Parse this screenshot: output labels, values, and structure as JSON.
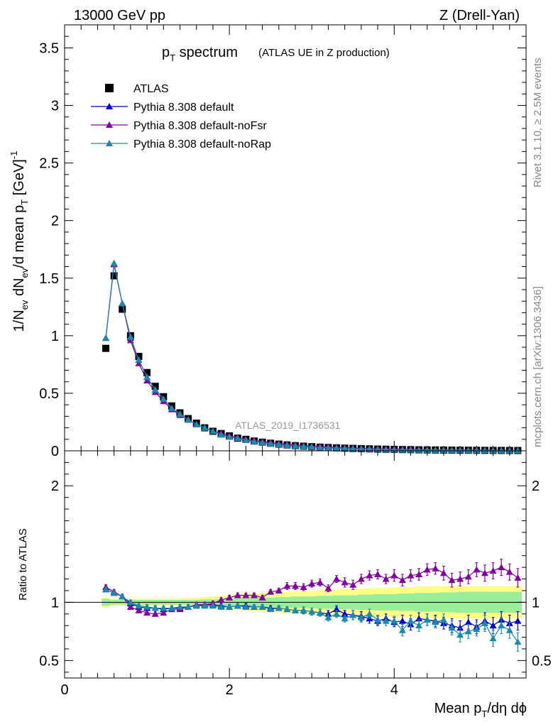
{
  "header": {
    "left": "13000 GeV pp",
    "right": "Z (Drell-Yan)"
  },
  "side_labels": {
    "rivet": "Rivet 3.1.10, ≥ 2.5M events",
    "mcplots": "mcplots.cern.ch [arXiv:1306.3436]"
  },
  "plot_title": {
    "main": "p",
    "main_sub": "T",
    "main_rest": " spectrum",
    "small": "(ATLAS UE in Z production)"
  },
  "analysis_label": "ATLAS_2019_I1736531",
  "ylabel_top": "1/N_ev dN_ev/d mean p_T [GeV]^-1",
  "ylabel_bottom": "Ratio to ATLAS",
  "xlabel": "Mean p_T/dη dϕ",
  "colors": {
    "data": "#000000",
    "default": "#0000cc",
    "noFsr": "#8000a0",
    "noRap": "#1a8aa8",
    "band_inner": "#99ee99",
    "band_outer": "#ffff88"
  },
  "chart_data": [
    {
      "type": "scatter",
      "name": "main",
      "xlim": [
        0,
        5.6
      ],
      "ylim": [
        0,
        3.7
      ],
      "xticks": [
        "0",
        "2",
        "4"
      ],
      "yticks": [
        "0",
        "0.5",
        "1",
        "1.5",
        "2",
        "2.5",
        "3",
        "3.5"
      ],
      "x": [
        0.5,
        0.6,
        0.7,
        0.8,
        0.9,
        1.0,
        1.1,
        1.2,
        1.3,
        1.4,
        1.5,
        1.6,
        1.7,
        1.8,
        1.9,
        2.0,
        2.1,
        2.2,
        2.3,
        2.4,
        2.5,
        2.6,
        2.7,
        2.8,
        2.9,
        3.0,
        3.1,
        3.2,
        3.3,
        3.4,
        3.5,
        3.6,
        3.7,
        3.8,
        3.9,
        4.0,
        4.1,
        4.2,
        4.3,
        4.4,
        4.5,
        4.6,
        4.7,
        4.8,
        4.9,
        5.0,
        5.1,
        5.2,
        5.3,
        5.4,
        5.5
      ],
      "series": [
        {
          "name": "ATLAS",
          "values": [
            0.89,
            1.52,
            1.23,
            1.0,
            0.82,
            0.68,
            0.56,
            0.47,
            0.39,
            0.33,
            0.28,
            0.24,
            0.2,
            0.17,
            0.15,
            0.13,
            0.11,
            0.1,
            0.085,
            0.075,
            0.066,
            0.058,
            0.051,
            0.045,
            0.04,
            0.036,
            0.032,
            0.029,
            0.026,
            0.023,
            0.021,
            0.019,
            0.017,
            0.015,
            0.014,
            0.012,
            0.011,
            0.01,
            0.009,
            0.008,
            0.0075,
            0.007,
            0.006,
            0.0055,
            0.005,
            0.0045,
            0.004,
            0.0037,
            0.0034,
            0.0031,
            0.0028
          ]
        },
        {
          "name": "Pythia 8.308 default",
          "values": [
            0.98,
            1.62,
            1.28,
            0.98,
            0.79,
            0.64,
            0.53,
            0.45,
            0.37,
            0.32,
            0.27,
            0.23,
            0.2,
            0.17,
            0.14,
            0.12,
            0.11,
            0.095,
            0.082,
            0.072,
            0.063,
            0.055,
            0.048,
            0.042,
            0.037,
            0.033,
            0.029,
            0.026,
            0.024,
            0.021,
            0.019,
            0.017,
            0.015,
            0.013,
            0.012,
            0.011,
            0.0095,
            0.0085,
            0.0077,
            0.007,
            0.0065,
            0.006,
            0.005,
            0.0045,
            0.004,
            0.0038,
            0.0033,
            0.003,
            0.0028,
            0.0025,
            0.0023
          ]
        },
        {
          "name": "Pythia 8.308 default-noFsr",
          "values": [
            0.98,
            1.62,
            1.28,
            0.96,
            0.76,
            0.61,
            0.51,
            0.43,
            0.36,
            0.31,
            0.27,
            0.23,
            0.2,
            0.17,
            0.15,
            0.13,
            0.115,
            0.1,
            0.089,
            0.08,
            0.071,
            0.064,
            0.057,
            0.051,
            0.045,
            0.041,
            0.037,
            0.033,
            0.03,
            0.027,
            0.025,
            0.022,
            0.02,
            0.018,
            0.017,
            0.015,
            0.014,
            0.012,
            0.011,
            0.01,
            0.009,
            0.0085,
            0.0075,
            0.007,
            0.0065,
            0.006,
            0.0055,
            0.005,
            0.0045,
            0.004,
            0.0036
          ]
        },
        {
          "name": "Pythia 8.308 default-noRap",
          "values": [
            0.98,
            1.63,
            1.28,
            0.99,
            0.79,
            0.64,
            0.53,
            0.45,
            0.37,
            0.32,
            0.27,
            0.23,
            0.2,
            0.17,
            0.14,
            0.12,
            0.11,
            0.093,
            0.081,
            0.071,
            0.062,
            0.055,
            0.048,
            0.042,
            0.037,
            0.033,
            0.029,
            0.026,
            0.023,
            0.021,
            0.019,
            0.017,
            0.015,
            0.013,
            0.012,
            0.01,
            0.0095,
            0.0085,
            0.0075,
            0.007,
            0.0065,
            0.006,
            0.005,
            0.0045,
            0.004,
            0.0038,
            0.0033,
            0.003,
            0.0028,
            0.0025,
            0.0022
          ]
        }
      ]
    },
    {
      "type": "scatter",
      "name": "ratio",
      "xlim": [
        0,
        5.6
      ],
      "ylim": [
        0.35,
        2.3
      ],
      "xticks": [
        "0",
        "2",
        "4"
      ],
      "yticks": [
        "0.5",
        "1",
        "2"
      ],
      "x": [
        0.5,
        0.6,
        0.7,
        0.8,
        0.9,
        1.0,
        1.1,
        1.2,
        1.3,
        1.4,
        1.5,
        1.6,
        1.7,
        1.8,
        1.9,
        2.0,
        2.1,
        2.2,
        2.3,
        2.4,
        2.5,
        2.6,
        2.7,
        2.8,
        2.9,
        3.0,
        3.1,
        3.2,
        3.3,
        3.4,
        3.5,
        3.6,
        3.7,
        3.8,
        3.9,
        4.0,
        4.1,
        4.2,
        4.3,
        4.4,
        4.5,
        4.6,
        4.7,
        4.8,
        4.9,
        5.0,
        5.1,
        5.2,
        5.3,
        5.4,
        5.5
      ],
      "band_inner": [
        0.03,
        0.02,
        0.02,
        0.02,
        0.02,
        0.02,
        0.02,
        0.02,
        0.02,
        0.02,
        0.02,
        0.02,
        0.025,
        0.025,
        0.03,
        0.03,
        0.035,
        0.035,
        0.04,
        0.04,
        0.04,
        0.045,
        0.045,
        0.05,
        0.05,
        0.05,
        0.055,
        0.055,
        0.06,
        0.06,
        0.06,
        0.065,
        0.065,
        0.07,
        0.07,
        0.07,
        0.075,
        0.075,
        0.08,
        0.08,
        0.08,
        0.085,
        0.085,
        0.09,
        0.09,
        0.09,
        0.09,
        0.09,
        0.09,
        0.09,
        0.09
      ],
      "band_outer": [
        0.04,
        0.03,
        0.03,
        0.03,
        0.03,
        0.03,
        0.03,
        0.03,
        0.03,
        0.03,
        0.035,
        0.04,
        0.045,
        0.05,
        0.055,
        0.06,
        0.065,
        0.07,
        0.075,
        0.08,
        0.085,
        0.09,
        0.09,
        0.095,
        0.1,
        0.1,
        0.105,
        0.11,
        0.11,
        0.115,
        0.115,
        0.12,
        0.12,
        0.125,
        0.125,
        0.13,
        0.13,
        0.13,
        0.135,
        0.135,
        0.14,
        0.14,
        0.14,
        0.14,
        0.14,
        0.14,
        0.14,
        0.14,
        0.14,
        0.14,
        0.14
      ],
      "series": [
        {
          "name": "Pythia 8.308 default",
          "values": [
            1.11,
            1.08,
            1.05,
            0.99,
            0.96,
            0.95,
            0.95,
            0.94,
            0.95,
            0.95,
            0.96,
            0.97,
            0.98,
            0.98,
            0.97,
            0.96,
            0.97,
            0.97,
            0.96,
            0.96,
            0.95,
            0.95,
            0.94,
            0.93,
            0.93,
            0.92,
            0.91,
            0.9,
            0.94,
            0.9,
            0.89,
            0.88,
            0.86,
            0.84,
            0.86,
            0.83,
            0.84,
            0.81,
            0.86,
            0.85,
            0.84,
            0.82,
            0.8,
            0.78,
            0.83,
            0.79,
            0.84,
            0.8,
            0.85,
            0.82,
            0.84
          ],
          "err": [
            0.02,
            0.02,
            0.02,
            0.02,
            0.02,
            0.02,
            0.02,
            0.02,
            0.02,
            0.02,
            0.02,
            0.02,
            0.02,
            0.02,
            0.02,
            0.02,
            0.02,
            0.02,
            0.02,
            0.02,
            0.02,
            0.02,
            0.02,
            0.02,
            0.03,
            0.03,
            0.03,
            0.03,
            0.03,
            0.03,
            0.04,
            0.04,
            0.04,
            0.04,
            0.04,
            0.04,
            0.05,
            0.05,
            0.05,
            0.05,
            0.05,
            0.05,
            0.06,
            0.06,
            0.06,
            0.06,
            0.07,
            0.07,
            0.07,
            0.07,
            0.08
          ]
        },
        {
          "name": "Pythia 8.308 default-noFsr",
          "values": [
            1.13,
            1.09,
            1.05,
            0.96,
            0.93,
            0.91,
            0.9,
            0.91,
            0.94,
            0.94,
            0.96,
            0.98,
            0.98,
            0.99,
            1.02,
            1.04,
            1.06,
            1.06,
            1.06,
            1.04,
            1.09,
            1.1,
            1.14,
            1.14,
            1.13,
            1.16,
            1.17,
            1.12,
            1.2,
            1.17,
            1.15,
            1.2,
            1.23,
            1.24,
            1.2,
            1.23,
            1.19,
            1.23,
            1.24,
            1.28,
            1.29,
            1.25,
            1.19,
            1.2,
            1.22,
            1.28,
            1.25,
            1.27,
            1.3,
            1.26,
            1.21
          ],
          "err": [
            0.02,
            0.02,
            0.02,
            0.02,
            0.02,
            0.02,
            0.02,
            0.02,
            0.02,
            0.02,
            0.02,
            0.02,
            0.02,
            0.02,
            0.02,
            0.02,
            0.02,
            0.02,
            0.02,
            0.02,
            0.02,
            0.02,
            0.03,
            0.03,
            0.03,
            0.03,
            0.03,
            0.03,
            0.03,
            0.04,
            0.04,
            0.04,
            0.04,
            0.04,
            0.04,
            0.05,
            0.05,
            0.05,
            0.05,
            0.05,
            0.05,
            0.06,
            0.06,
            0.06,
            0.06,
            0.06,
            0.07,
            0.07,
            0.07,
            0.07,
            0.08
          ]
        },
        {
          "name": "Pythia 8.308 default-noRap",
          "values": [
            1.11,
            1.08,
            1.05,
            1.0,
            0.97,
            0.96,
            0.95,
            0.95,
            0.95,
            0.96,
            0.96,
            0.97,
            0.97,
            0.97,
            0.96,
            0.96,
            0.97,
            0.96,
            0.96,
            0.96,
            0.94,
            0.95,
            0.94,
            0.93,
            0.93,
            0.92,
            0.91,
            0.87,
            0.9,
            0.86,
            0.89,
            0.87,
            0.9,
            0.85,
            0.84,
            0.84,
            0.76,
            0.84,
            0.8,
            0.85,
            0.83,
            0.85,
            0.78,
            0.72,
            0.75,
            0.77,
            0.82,
            0.69,
            0.8,
            0.76,
            0.66
          ],
          "err": [
            0.02,
            0.02,
            0.02,
            0.02,
            0.02,
            0.02,
            0.02,
            0.02,
            0.02,
            0.02,
            0.02,
            0.02,
            0.02,
            0.02,
            0.02,
            0.02,
            0.02,
            0.02,
            0.02,
            0.02,
            0.02,
            0.02,
            0.02,
            0.02,
            0.03,
            0.03,
            0.03,
            0.03,
            0.03,
            0.03,
            0.04,
            0.04,
            0.04,
            0.04,
            0.04,
            0.04,
            0.05,
            0.05,
            0.05,
            0.05,
            0.05,
            0.05,
            0.06,
            0.06,
            0.06,
            0.06,
            0.07,
            0.07,
            0.07,
            0.07,
            0.08
          ]
        }
      ]
    }
  ]
}
